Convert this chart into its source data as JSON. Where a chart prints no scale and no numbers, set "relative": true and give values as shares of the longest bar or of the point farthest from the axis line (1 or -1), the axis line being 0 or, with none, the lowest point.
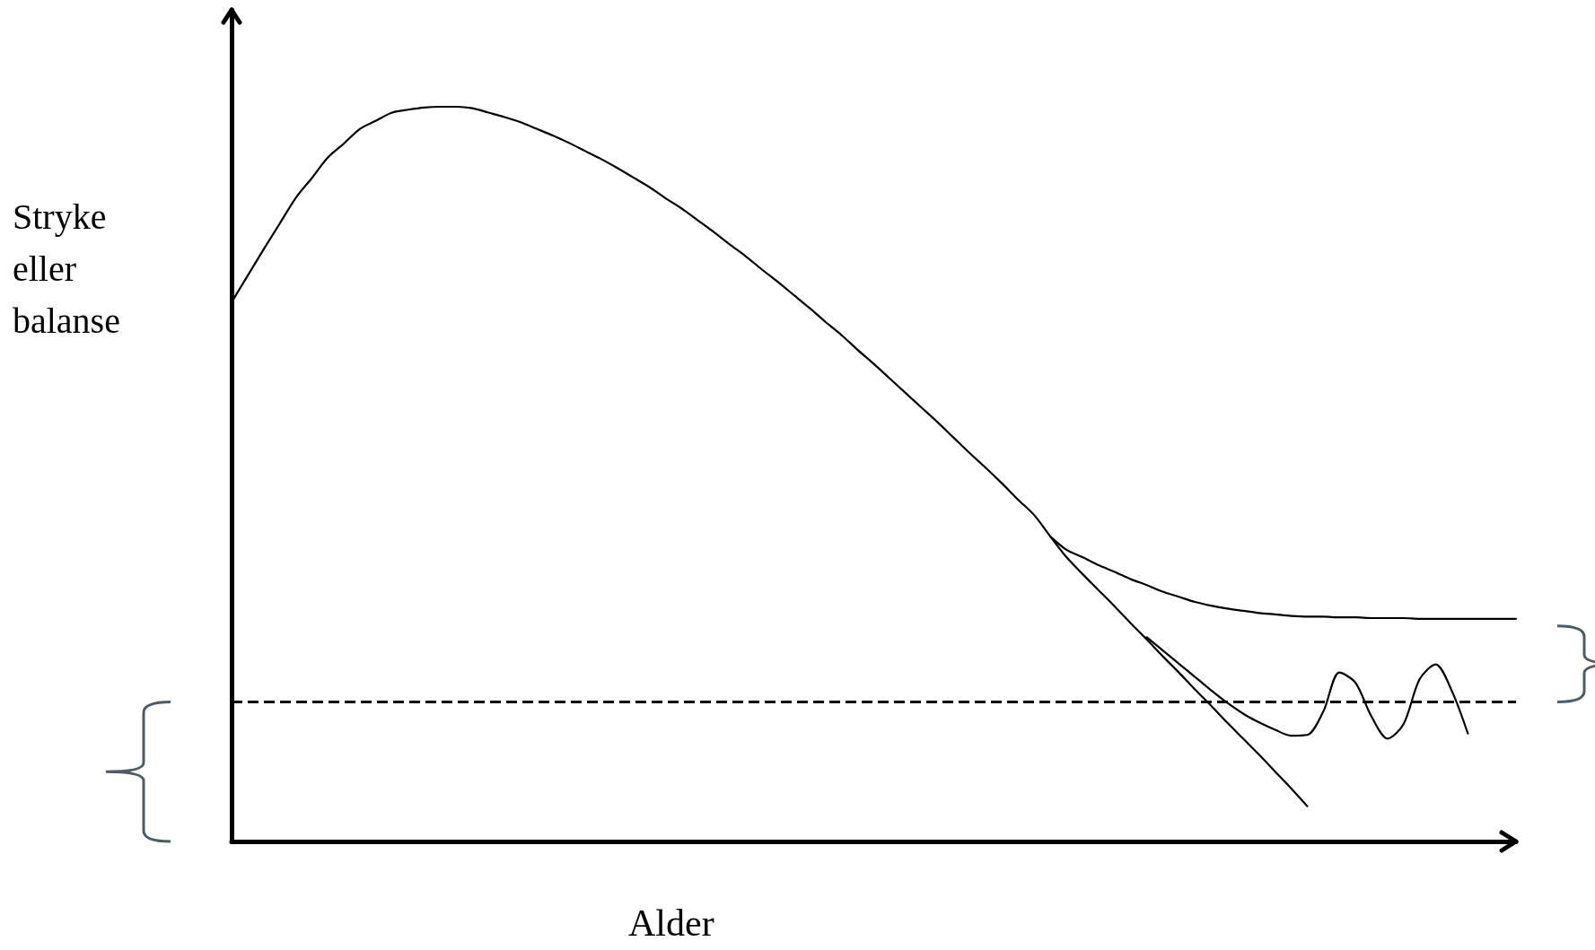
{
  "chart_data": {
    "type": "line",
    "relative": true,
    "xlabel": "Alder",
    "ylabel": "Stryke eller balanse",
    "marker": "none",
    "line_style": "solid",
    "categories": [
      null,
      null,
      null,
      null,
      null,
      null,
      null,
      null,
      null,
      null,
      null,
      null,
      null,
      null,
      null,
      null,
      null,
      null,
      null,
      null,
      null,
      null,
      null,
      null,
      null,
      null,
      null,
      null,
      null,
      null,
      null,
      null,
      null,
      null,
      null,
      null,
      null,
      null,
      null,
      null,
      null,
      null,
      null,
      null,
      null,
      null,
      null,
      null,
      null,
      null,
      null,
      null,
      null,
      null,
      null,
      null,
      null,
      null,
      null,
      null,
      null,
      null,
      null,
      null,
      null,
      null,
      null,
      null,
      null,
      null,
      null,
      null,
      null,
      null,
      null,
      null,
      null,
      null,
      null,
      null,
      null
    ],
    "series": [
      {
        "color": "#000000",
        "values": [
          0.734,
          0.77,
          0.806,
          0.841,
          0.876,
          0.903,
          0.931,
          0.95,
          0.97,
          0.981,
          0.992,
          0.996,
          0.999,
          1.0,
          1.0,
          0.998,
          0.992,
          0.986,
          0.979,
          0.97,
          0.961,
          0.951,
          0.94,
          0.929,
          0.917,
          0.904,
          0.891,
          0.876,
          0.862,
          0.846,
          0.83,
          0.813,
          0.797,
          0.779,
          0.762,
          0.744,
          0.726,
          0.707,
          0.689,
          0.669,
          0.65,
          0.63,
          0.61,
          0.59,
          0.57,
          0.549,
          0.528,
          0.508,
          0.487,
          0.465,
          0.444,
          0.415,
          0.387,
          0.364,
          0.342,
          0.32,
          0.297,
          0.275,
          0.252,
          0.23,
          0.207,
          0.185,
          0.162,
          0.14,
          0.118,
          0.095,
          0.072,
          0.048,
          null,
          null,
          null,
          null,
          null,
          null,
          null,
          null,
          null,
          null,
          null,
          null,
          null
        ]
      },
      {
        "color": "#000000",
        "values": [
          null,
          null,
          null,
          null,
          null,
          null,
          null,
          null,
          null,
          null,
          null,
          null,
          null,
          null,
          null,
          null,
          null,
          null,
          null,
          null,
          null,
          null,
          null,
          null,
          null,
          null,
          null,
          null,
          null,
          null,
          null,
          null,
          null,
          null,
          null,
          null,
          null,
          null,
          null,
          null,
          null,
          null,
          null,
          null,
          null,
          null,
          null,
          null,
          null,
          null,
          null,
          0.415,
          0.397,
          0.387,
          0.376,
          0.367,
          0.357,
          0.349,
          0.34,
          0.333,
          0.326,
          0.321,
          0.317,
          0.314,
          0.311,
          0.309,
          0.307,
          0.306,
          0.306,
          0.305,
          0.305,
          0.304,
          0.304,
          0.304,
          0.303,
          0.303,
          0.303,
          0.303,
          0.303,
          0.303,
          0.303
        ]
      },
      {
        "color": "#000000",
        "values": [
          null,
          null,
          null,
          null,
          null,
          null,
          null,
          null,
          null,
          null,
          null,
          null,
          null,
          null,
          null,
          null,
          null,
          null,
          null,
          null,
          null,
          null,
          null,
          null,
          null,
          null,
          null,
          null,
          null,
          null,
          null,
          null,
          null,
          null,
          null,
          null,
          null,
          null,
          null,
          null,
          null,
          null,
          null,
          null,
          null,
          null,
          null,
          null,
          null,
          null,
          null,
          null,
          null,
          null,
          null,
          null,
          null,
          0.278,
          0.26,
          0.242,
          0.224,
          0.206,
          0.189,
          0.174,
          0.162,
          0.152,
          0.144,
          0.145,
          0.177,
          0.23,
          0.216,
          0.17,
          0.14,
          0.16,
          0.221,
          0.241,
          0.205,
          0.147,
          null,
          null,
          null
        ]
      }
    ],
    "ref_lines": [
      {
        "axis": "y",
        "value": 0.19,
        "color": "#000000",
        "line_style": "dashed"
      }
    ]
  }
}
